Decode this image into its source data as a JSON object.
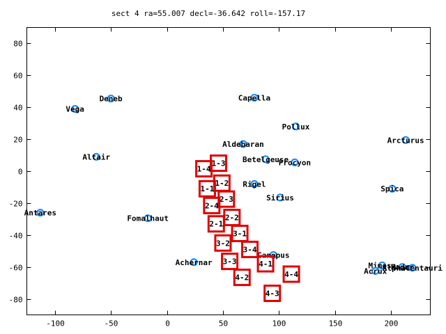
{
  "chart_data": {
    "type": "scatter",
    "title": "sect 4 ra=55.007 decl=-36.642 roll=-157.17",
    "xlabel": "",
    "ylabel": "",
    "xlim": [
      -125,
      235
    ],
    "ylim": [
      -90,
      90
    ],
    "x_ticks": [
      -100,
      -50,
      0,
      50,
      100,
      150,
      200
    ],
    "y_ticks": [
      -80,
      -60,
      -40,
      -20,
      0,
      20,
      40,
      60,
      80
    ],
    "grid": false,
    "colors": {
      "star": "#1e90ff",
      "sector": "#e00000"
    },
    "stars": [
      {
        "name": "Deneb",
        "x": -50,
        "y": 45.5
      },
      {
        "name": "Vega",
        "x": -82,
        "y": 39
      },
      {
        "name": "Capella",
        "x": 78,
        "y": 46
      },
      {
        "name": "Pollux",
        "x": 115,
        "y": 28
      },
      {
        "name": "Arcturus",
        "x": 213,
        "y": 19.5
      },
      {
        "name": "Aldebaran",
        "x": 68,
        "y": 17
      },
      {
        "name": "Altair",
        "x": -63,
        "y": 9
      },
      {
        "name": "Betelgeuse",
        "x": 88,
        "y": 7.5
      },
      {
        "name": "Procyon",
        "x": 114,
        "y": 5.5
      },
      {
        "name": "Rigel",
        "x": 78,
        "y": -8
      },
      {
        "name": "Spica",
        "x": 201,
        "y": -11
      },
      {
        "name": "Sirius",
        "x": 101,
        "y": -16.5
      },
      {
        "name": "Antares",
        "x": -113,
        "y": -26
      },
      {
        "name": "Fomalhaut",
        "x": -17,
        "y": -29.5
      },
      {
        "name": "Canopus",
        "x": 95,
        "y": -52.5
      },
      {
        "name": "Achernar",
        "x": 24,
        "y": -57
      },
      {
        "name": "Mimosa",
        "x": 192,
        "y": -59
      },
      {
        "name": "Hadar",
        "x": 210,
        "y": -60
      },
      {
        "name": "Acrux",
        "x": 186,
        "y": -62.5
      },
      {
        "name": "AlphaCentauri",
        "x": 219,
        "y": -60.5
      }
    ],
    "sectors": [
      {
        "name": "1-3",
        "x": 46,
        "y": 5
      },
      {
        "name": "1-4",
        "x": 33,
        "y": 1.5
      },
      {
        "name": "1-2",
        "x": 49,
        "y": -7.5
      },
      {
        "name": "1-1",
        "x": 36,
        "y": -11
      },
      {
        "name": "2-3",
        "x": 53,
        "y": -17.5
      },
      {
        "name": "2-4",
        "x": 40,
        "y": -21.5
      },
      {
        "name": "2-2",
        "x": 58,
        "y": -29
      },
      {
        "name": "2-1",
        "x": 44,
        "y": -33
      },
      {
        "name": "3-1",
        "x": 65,
        "y": -39
      },
      {
        "name": "3-2",
        "x": 50,
        "y": -45
      },
      {
        "name": "3-4",
        "x": 74,
        "y": -49
      },
      {
        "name": "3-3",
        "x": 56,
        "y": -56.5
      },
      {
        "name": "4-1",
        "x": 88,
        "y": -58
      },
      {
        "name": "4-2",
        "x": 67,
        "y": -66.5
      },
      {
        "name": "4-4",
        "x": 111,
        "y": -64.5
      },
      {
        "name": "4-3",
        "x": 94,
        "y": -76.5
      }
    ]
  }
}
